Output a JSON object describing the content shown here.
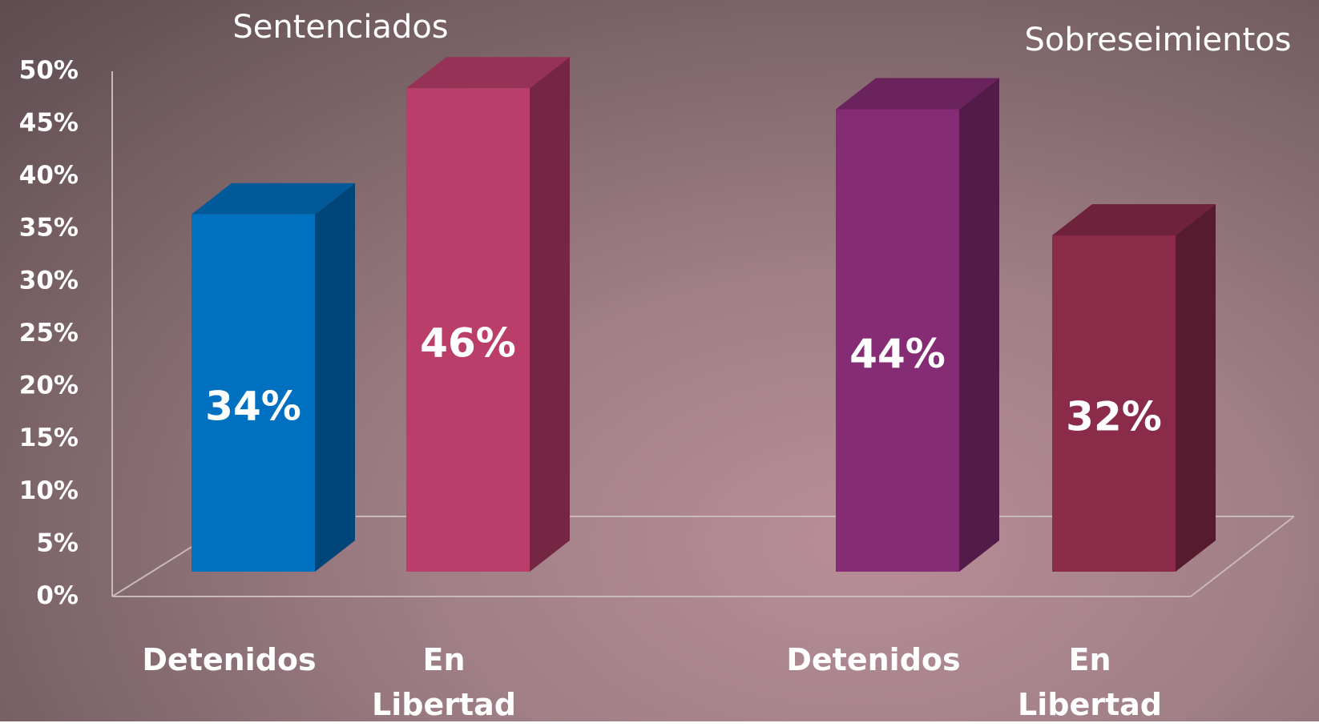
{
  "chart_data": {
    "type": "bar",
    "group_titles": [
      "Sentenciados",
      "Sobreseimientos"
    ],
    "categories": [
      "Detenidos",
      "En Libertad",
      "Detenidos",
      "En Libertad"
    ],
    "values": [
      34,
      46,
      44,
      32
    ],
    "value_labels": [
      "34%",
      "46%",
      "44%",
      "32%"
    ],
    "colors": [
      "#0070c0",
      "#bb3e6a",
      "#862c74",
      "#8b2b4a"
    ],
    "ylim": [
      0,
      50
    ],
    "yticks": [
      {
        "value": 0,
        "label": "0%"
      },
      {
        "value": 5,
        "label": "5%"
      },
      {
        "value": 10,
        "label": "10%"
      },
      {
        "value": 15,
        "label": "15%"
      },
      {
        "value": 20,
        "label": "20%"
      },
      {
        "value": 25,
        "label": "25%"
      },
      {
        "value": 30,
        "label": "30%"
      },
      {
        "value": 35,
        "label": "35%"
      },
      {
        "value": 40,
        "label": "40%"
      },
      {
        "value": 45,
        "label": "45%"
      },
      {
        "value": 50,
        "label": "50%"
      }
    ]
  }
}
